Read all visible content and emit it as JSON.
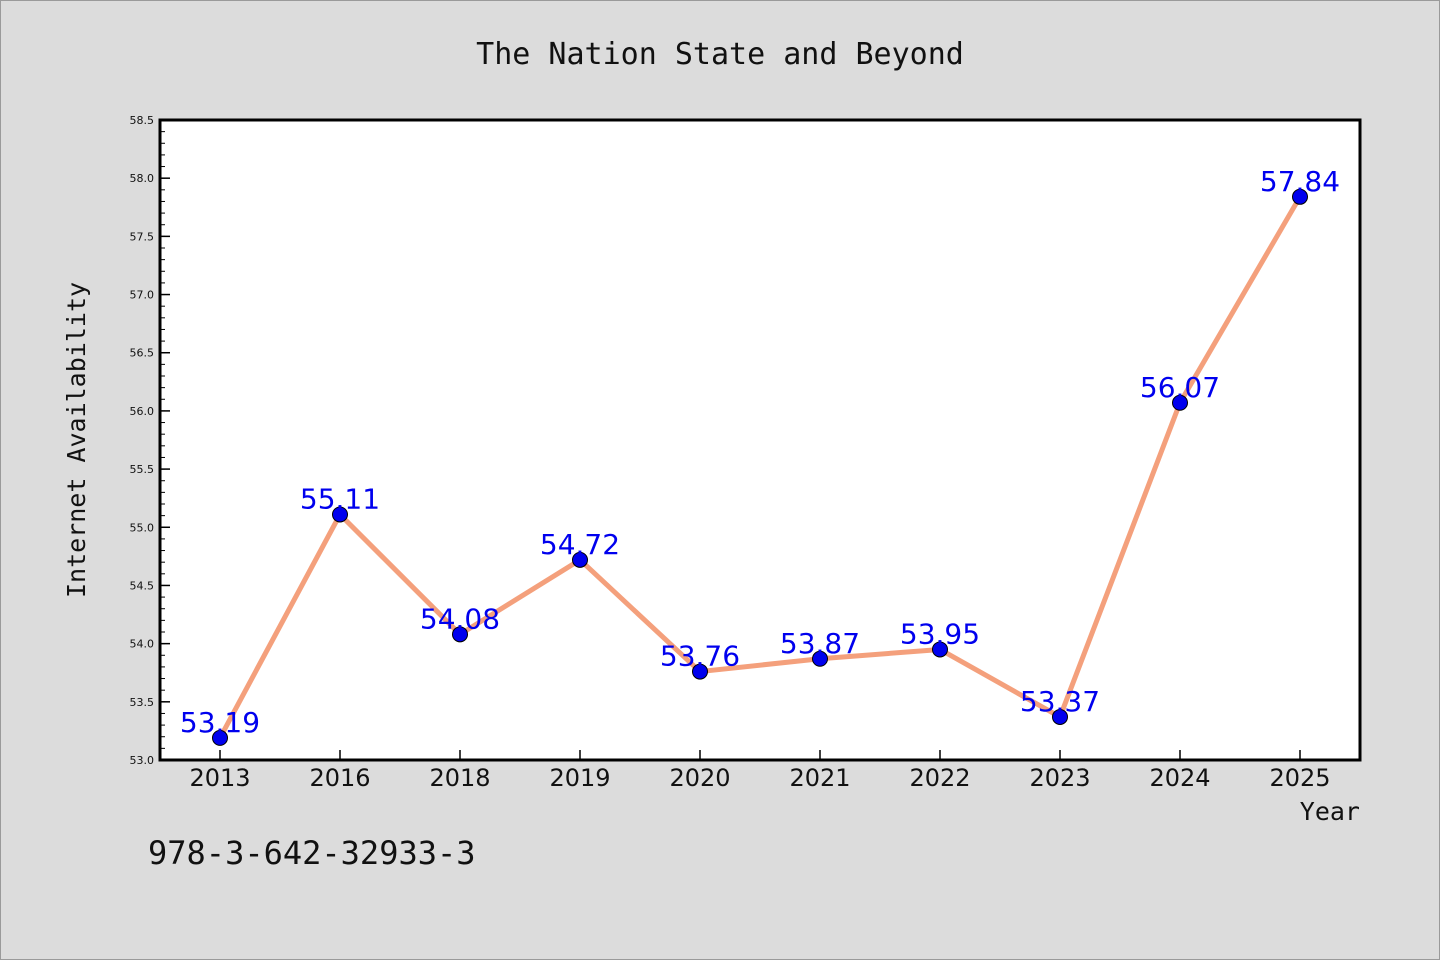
{
  "chart_data": {
    "type": "line",
    "title": "The Nation State and Beyond",
    "xlabel": "Year",
    "ylabel": "Internet Availability",
    "categories": [
      "2013",
      "2016",
      "2018",
      "2019",
      "2020",
      "2021",
      "2022",
      "2023",
      "2024",
      "2025"
    ],
    "values": [
      53.19,
      55.11,
      54.08,
      54.72,
      53.76,
      53.87,
      53.95,
      53.37,
      56.07,
      57.84
    ],
    "value_labels": [
      "53.19",
      "55.11",
      "54.08",
      "54.72",
      "53.76",
      "53.87",
      "53.95",
      "53.37",
      "56.07",
      "57.84"
    ],
    "ylim": [
      53.0,
      58.5
    ],
    "yticks": [
      "53.0",
      "53.5",
      "54.0",
      "54.5",
      "55.0",
      "55.5",
      "56.0",
      "56.5",
      "57.0",
      "57.5",
      "58.0",
      "58.5"
    ],
    "grid": false,
    "line_color": "#f4a07c",
    "marker_color": "#0000ee",
    "label_color": "#0000ee",
    "annotation": "978-3-642-32933-3"
  }
}
